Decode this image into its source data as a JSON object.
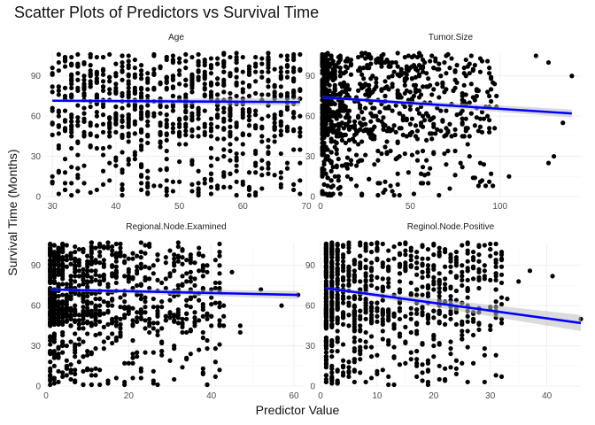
{
  "figure": {
    "title": "Scatter Plots of Predictors vs Survival Time",
    "xlabel": "Predictor Value",
    "ylabel": "Survival Time (Months)"
  },
  "chart_data": [
    {
      "type": "scatter",
      "facet": "Age",
      "xlim": [
        29,
        70
      ],
      "ylim": [
        0,
        107
      ],
      "xticks": [
        30,
        40,
        50,
        60,
        70
      ],
      "yticks": [
        0,
        30,
        60,
        90
      ],
      "x_integer": true,
      "x_range": [
        30,
        69
      ],
      "trend": {
        "x0": 30,
        "y0": 71.5,
        "x1": 69,
        "y1": 70.5
      },
      "outliers": [
        [
          32,
          5
        ],
        [
          33,
          10
        ],
        [
          36,
          3
        ],
        [
          38,
          9
        ],
        [
          41,
          6
        ],
        [
          45,
          2
        ],
        [
          52,
          4
        ],
        [
          62,
          3
        ],
        [
          66,
          7
        ]
      ],
      "point_color": "#000000",
      "line_color": "#0000ff"
    },
    {
      "type": "scatter",
      "facet": "Tumor.Size",
      "xlim": [
        0,
        145
      ],
      "ylim": [
        0,
        107
      ],
      "xticks": [
        0,
        50,
        100
      ],
      "yticks": [
        0,
        30,
        60,
        90
      ],
      "x_integer": true,
      "x_range": [
        1,
        140
      ],
      "trend": {
        "x0": 1,
        "y0": 74,
        "x1": 140,
        "y1": 62
      },
      "outliers": [
        [
          120,
          105
        ],
        [
          127,
          100
        ],
        [
          140,
          90
        ],
        [
          135,
          55
        ],
        [
          127,
          25
        ],
        [
          130,
          30
        ],
        [
          105,
          15
        ],
        [
          95,
          80
        ],
        [
          80,
          45
        ]
      ],
      "point_color": "#000000",
      "line_color": "#0000ff"
    },
    {
      "type": "scatter",
      "facet": "Regional.Node.Examined",
      "xlim": [
        0,
        63
      ],
      "ylim": [
        0,
        107
      ],
      "xticks": [
        0,
        20,
        40,
        60
      ],
      "yticks": [
        0,
        30,
        60,
        90
      ],
      "x_integer": true,
      "x_range": [
        1,
        61
      ],
      "trend": {
        "x0": 1,
        "y0": 72,
        "x1": 61,
        "y1": 68
      },
      "outliers": [
        [
          61,
          68
        ],
        [
          57,
          60
        ],
        [
          52,
          72
        ],
        [
          47,
          40
        ],
        [
          47,
          45
        ],
        [
          45,
          85
        ],
        [
          42,
          100
        ]
      ],
      "point_color": "#000000",
      "line_color": "#0000ff"
    },
    {
      "type": "scatter",
      "facet": "Reginol.Node.Positive",
      "xlim": [
        0,
        46
      ],
      "ylim": [
        0,
        107
      ],
      "xticks": [
        0,
        10,
        20,
        30,
        40
      ],
      "yticks": [
        0,
        30,
        60,
        90
      ],
      "x_integer": true,
      "x_range": [
        1,
        46
      ],
      "trend": {
        "x0": 1,
        "y0": 73,
        "x1": 46,
        "y1": 47
      },
      "outliers": [
        [
          46,
          50
        ],
        [
          41,
          82
        ],
        [
          37,
          86
        ],
        [
          35,
          78
        ],
        [
          33,
          65
        ],
        [
          30,
          45
        ],
        [
          28,
          55
        ]
      ],
      "point_color": "#000000",
      "line_color": "#0000ff"
    }
  ]
}
